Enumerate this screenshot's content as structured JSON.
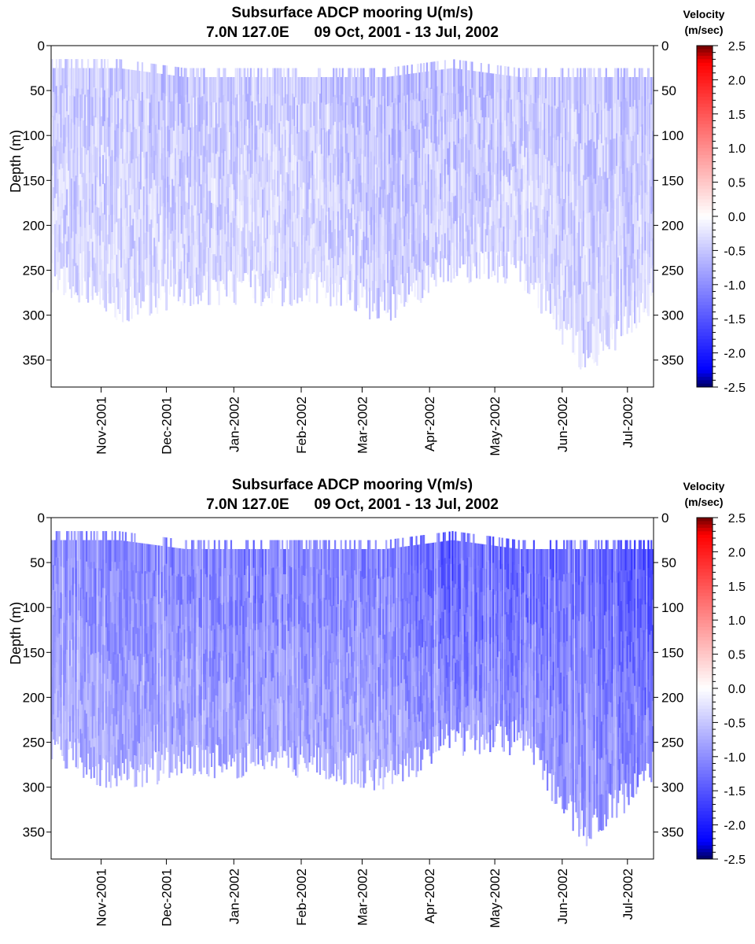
{
  "colorbar": {
    "title_line1": "Velocity",
    "title_line2": "(m/sec)",
    "tick_labels": [
      "2.5",
      "2.0",
      "1.5",
      "1.0",
      "0.5",
      "0.0",
      "-0.5",
      "-1.0",
      "-1.5",
      "-2.0",
      "-2.5"
    ],
    "range": [
      -2.5,
      2.5
    ],
    "colors": {
      "max": "#6b0000",
      "high": "#ff0000",
      "zero": "#ffffff",
      "low": "#0000ff",
      "min": "#000060"
    }
  },
  "chart_data": [
    {
      "type": "heatmap",
      "title": "Subsurface ADCP mooring U(m/s)",
      "subtitle": "7.0N 127.0E      09 Oct, 2001 - 13 Jul, 2002",
      "xlabel": "",
      "ylabel": "Depth (m)",
      "x_range": [
        "2001-10-09",
        "2002-07-13"
      ],
      "ylim": [
        380,
        0
      ],
      "y_ticks": [
        "0",
        "50",
        "100",
        "150",
        "200",
        "250",
        "300",
        "350"
      ],
      "x_ticks": [
        "Nov-2001",
        "Dec-2001",
        "Jan-2002",
        "Feb-2002",
        "Mar-2002",
        "Apr-2002",
        "May-2002",
        "Jun-2002",
        "Jul-2002"
      ],
      "x_tick_dates": [
        "2001-11-01",
        "2001-12-01",
        "2002-01-01",
        "2002-02-01",
        "2002-03-01",
        "2002-04-01",
        "2002-05-01",
        "2002-06-01",
        "2002-07-01"
      ],
      "months": [
        "2001-10",
        "2001-11",
        "2001-12",
        "2002-01",
        "2002-02",
        "2002-03",
        "2002-04",
        "2002-05",
        "2002-06",
        "2002-07"
      ],
      "data_top_depth": [
        25,
        25,
        35,
        35,
        35,
        35,
        25,
        35,
        35,
        35
      ],
      "data_bottom_depth": [
        275,
        310,
        290,
        290,
        290,
        310,
        265,
        265,
        370,
        300
      ],
      "velocity_mean": [
        -0.5,
        -0.5,
        -0.5,
        -0.5,
        -0.5,
        -0.6,
        -0.6,
        -0.5,
        -0.5,
        -0.6
      ],
      "velocity_range": [
        -1.2,
        0.3
      ]
    },
    {
      "type": "heatmap",
      "title": "Subsurface ADCP mooring V(m/s)",
      "subtitle": "7.0N 127.0E      09 Oct, 2001 - 13 Jul, 2002",
      "xlabel": "",
      "ylabel": "Depth (m)",
      "x_range": [
        "2001-10-09",
        "2002-07-13"
      ],
      "ylim": [
        380,
        0
      ],
      "y_ticks": [
        "0",
        "50",
        "100",
        "150",
        "200",
        "250",
        "300",
        "350"
      ],
      "x_ticks": [
        "Nov-2001",
        "Dec-2001",
        "Jan-2002",
        "Feb-2002",
        "Mar-2002",
        "Apr-2002",
        "May-2002",
        "Jun-2002",
        "Jul-2002"
      ],
      "x_tick_dates": [
        "2001-11-01",
        "2001-12-01",
        "2002-01-01",
        "2002-02-01",
        "2002-03-01",
        "2002-04-01",
        "2002-05-01",
        "2002-06-01",
        "2002-07-01"
      ],
      "months": [
        "2001-10",
        "2001-11",
        "2001-12",
        "2002-01",
        "2002-02",
        "2002-03",
        "2002-04",
        "2002-05",
        "2002-06",
        "2002-07"
      ],
      "data_top_depth": [
        25,
        25,
        35,
        35,
        35,
        35,
        25,
        35,
        35,
        35
      ],
      "data_bottom_depth": [
        275,
        310,
        290,
        290,
        290,
        310,
        265,
        265,
        370,
        300
      ],
      "velocity_mean": [
        -1.0,
        -1.1,
        -1.1,
        -1.2,
        -1.1,
        -1.1,
        -1.5,
        -1.4,
        -1.3,
        -1.6
      ],
      "velocity_range": [
        -2.2,
        0.3
      ]
    }
  ]
}
